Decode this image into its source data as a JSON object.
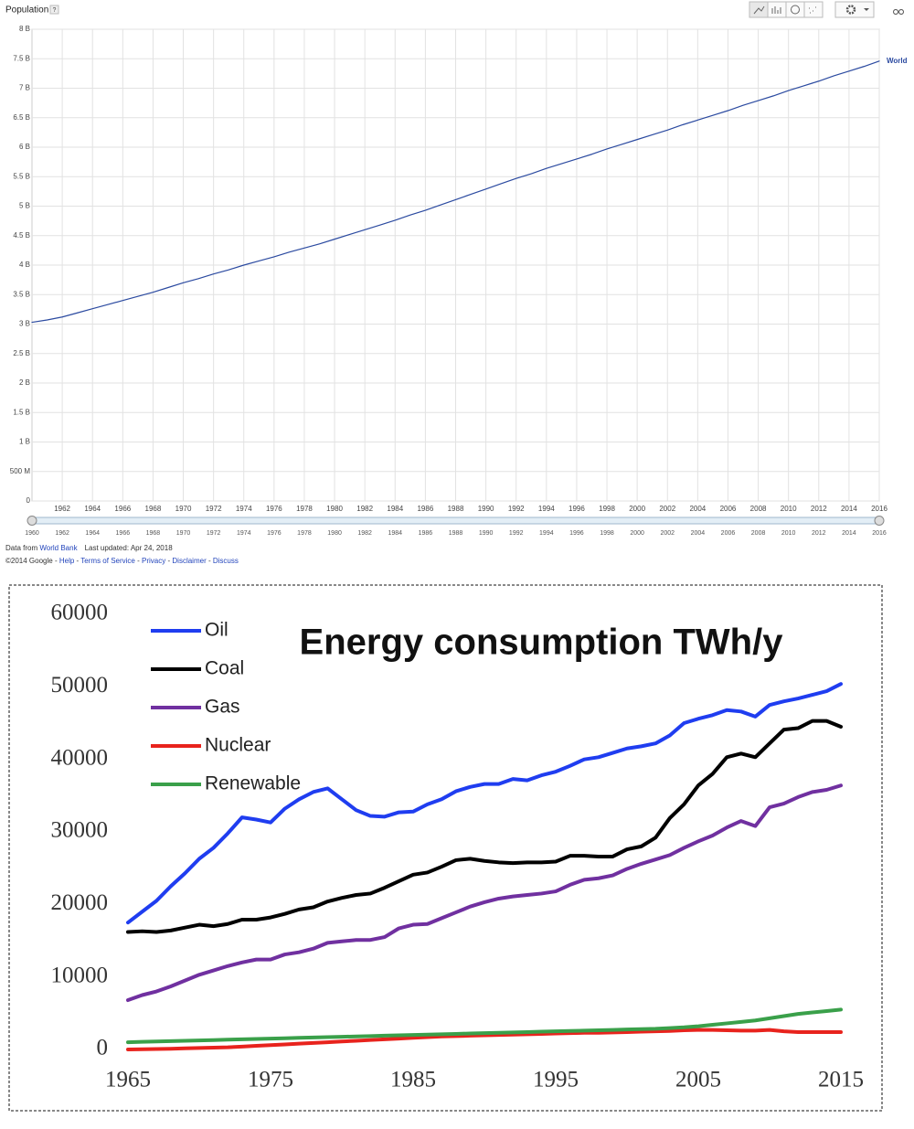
{
  "header": {
    "help": "?"
  },
  "footer": {
    "source_prefix": "Data from",
    "source": "World Bank",
    "updated": "Last updated: Apr 24, 2018",
    "copyright": "©2014 Google",
    "separator": "-",
    "links": [
      "Help",
      "Terms of Service",
      "Privacy",
      "Disclaimer",
      "Discuss"
    ]
  },
  "chart_data": [
    {
      "type": "line",
      "title": "Population",
      "grid": true,
      "legend": "line-end",
      "x": [
        1960,
        1961,
        1962,
        1963,
        1964,
        1965,
        1966,
        1967,
        1968,
        1969,
        1970,
        1971,
        1972,
        1973,
        1974,
        1975,
        1976,
        1977,
        1978,
        1979,
        1980,
        1981,
        1982,
        1983,
        1984,
        1985,
        1986,
        1987,
        1988,
        1989,
        1990,
        1991,
        1992,
        1993,
        1994,
        1995,
        1996,
        1997,
        1998,
        1999,
        2000,
        2001,
        2002,
        2003,
        2004,
        2005,
        2006,
        2007,
        2008,
        2009,
        2010,
        2011,
        2012,
        2013,
        2014,
        2015,
        2016
      ],
      "series": [
        {
          "name": "World",
          "color": "#2b4aa0",
          "values": [
            3030000000.0,
            3070000000.0,
            3120000000.0,
            3190000000.0,
            3260000000.0,
            3330000000.0,
            3400000000.0,
            3470000000.0,
            3540000000.0,
            3620000000.0,
            3700000000.0,
            3770000000.0,
            3850000000.0,
            3920000000.0,
            4000000000.0,
            4070000000.0,
            4140000000.0,
            4220000000.0,
            4290000000.0,
            4360000000.0,
            4440000000.0,
            4520000000.0,
            4600000000.0,
            4680000000.0,
            4760000000.0,
            4850000000.0,
            4930000000.0,
            5020000000.0,
            5110000000.0,
            5200000000.0,
            5290000000.0,
            5380000000.0,
            5470000000.0,
            5550000000.0,
            5640000000.0,
            5720000000.0,
            5800000000.0,
            5880000000.0,
            5970000000.0,
            6050000000.0,
            6130000000.0,
            6210000000.0,
            6290000000.0,
            6380000000.0,
            6460000000.0,
            6540000000.0,
            6620000000.0,
            6710000000.0,
            6790000000.0,
            6870000000.0,
            6960000000.0,
            7040000000.0,
            7120000000.0,
            7210000000.0,
            7290000000.0,
            7370000000.0,
            7460000000.0
          ]
        }
      ],
      "xlim": [
        1960,
        2016
      ],
      "xticks": [
        1962,
        1964,
        1966,
        1968,
        1970,
        1972,
        1974,
        1976,
        1978,
        1980,
        1982,
        1984,
        1986,
        1988,
        1990,
        1992,
        1994,
        1996,
        1998,
        2000,
        2002,
        2004,
        2006,
        2008,
        2010,
        2012,
        2014,
        2016
      ],
      "ylim": [
        0,
        8000000000
      ],
      "yticks": [
        0,
        {
          "value": 500000000,
          "label": "500 M"
        },
        {
          "value": 1000000000,
          "label": "1 B"
        },
        {
          "value": 1500000000,
          "label": "1.5 B"
        },
        {
          "value": 2000000000,
          "label": "2 B"
        },
        {
          "value": 2500000000,
          "label": "2.5 B"
        },
        {
          "value": 3000000000,
          "label": "3 B"
        },
        {
          "value": 3500000000,
          "label": "3.5 B"
        },
        {
          "value": 4000000000,
          "label": "4 B"
        },
        {
          "value": 4500000000,
          "label": "4.5 B"
        },
        {
          "value": 5000000000,
          "label": "5 B"
        },
        {
          "value": 5500000000,
          "label": "5.5 B"
        },
        {
          "value": 6000000000,
          "label": "6 B"
        },
        {
          "value": 6500000000,
          "label": "6.5 B"
        },
        {
          "value": 7000000000,
          "label": "7 B"
        },
        {
          "value": 7500000000,
          "label": "7.5 B"
        },
        {
          "value": 8000000000,
          "label": "8 B"
        }
      ]
    },
    {
      "type": "line",
      "title": "Energy consumption TWh/y",
      "grid": false,
      "legend": "upper left",
      "x": [
        1965,
        1966,
        1967,
        1968,
        1969,
        1970,
        1971,
        1972,
        1973,
        1974,
        1975,
        1976,
        1977,
        1978,
        1979,
        1980,
        1981,
        1982,
        1983,
        1984,
        1985,
        1986,
        1987,
        1988,
        1989,
        1990,
        1991,
        1992,
        1993,
        1994,
        1995,
        1996,
        1997,
        1998,
        1999,
        2000,
        2001,
        2002,
        2003,
        2004,
        2005,
        2006,
        2007,
        2008,
        2009,
        2010,
        2011,
        2012,
        2013,
        2014,
        2015
      ],
      "series": [
        {
          "name": "Oil",
          "color": "#1f3df0",
          "values": [
            17500,
            19000,
            20500,
            22500,
            24300,
            26300,
            27800,
            29800,
            32000,
            31700,
            31300,
            33200,
            34500,
            35500,
            36000,
            34500,
            33000,
            32200,
            32100,
            32700,
            32800,
            33800,
            34500,
            35600,
            36200,
            36600,
            36600,
            37300,
            37100,
            37800,
            38300,
            39100,
            40000,
            40300,
            40900,
            41500,
            41800,
            42200,
            43300,
            45000,
            45600,
            46100,
            46800,
            46600,
            45900,
            47500,
            48000,
            48400,
            48900,
            49400,
            50400
          ]
        },
        {
          "name": "Coal",
          "color": "#000000",
          "values": [
            16200,
            16300,
            16200,
            16400,
            16800,
            17200,
            17000,
            17300,
            17900,
            17900,
            18200,
            18700,
            19300,
            19600,
            20400,
            20900,
            21300,
            21500,
            22300,
            23200,
            24100,
            24400,
            25200,
            26100,
            26300,
            26000,
            25800,
            25700,
            25800,
            25800,
            25900,
            26700,
            26700,
            26600,
            26600,
            27600,
            28000,
            29200,
            31900,
            33800,
            36400,
            38000,
            40300,
            40800,
            40300,
            42200,
            44100,
            44300,
            45300,
            45300,
            44500
          ]
        },
        {
          "name": "Gas",
          "color": "#7030a0",
          "values": [
            6800,
            7500,
            8000,
            8700,
            9500,
            10300,
            10900,
            11500,
            12000,
            12400,
            12400,
            13100,
            13400,
            13900,
            14700,
            14900,
            15100,
            15100,
            15500,
            16700,
            17200,
            17300,
            18100,
            18900,
            19700,
            20300,
            20800,
            21100,
            21300,
            21500,
            21800,
            22700,
            23400,
            23600,
            24000,
            24900,
            25600,
            26200,
            26800,
            27800,
            28700,
            29500,
            30600,
            31500,
            30800,
            33400,
            33900,
            34800,
            35500,
            35800,
            36400
          ]
        },
        {
          "name": "Nuclear",
          "color": "#e8231d",
          "values": [
            0,
            30,
            60,
            100,
            150,
            200,
            250,
            300,
            400,
            500,
            600,
            700,
            800,
            900,
            1000,
            1100,
            1200,
            1300,
            1400,
            1500,
            1600,
            1700,
            1800,
            1850,
            1900,
            1950,
            2000,
            2050,
            2100,
            2150,
            2200,
            2250,
            2300,
            2300,
            2350,
            2400,
            2450,
            2500,
            2550,
            2650,
            2700,
            2700,
            2650,
            2600,
            2600,
            2700,
            2500,
            2400,
            2400,
            2400,
            2400
          ]
        },
        {
          "name": "Renewable",
          "color": "#3aa04a",
          "values": [
            1000,
            1050,
            1100,
            1150,
            1200,
            1250,
            1300,
            1350,
            1400,
            1450,
            1500,
            1550,
            1600,
            1650,
            1700,
            1750,
            1800,
            1850,
            1900,
            1950,
            2000,
            2050,
            2100,
            2150,
            2200,
            2250,
            2300,
            2350,
            2400,
            2450,
            2500,
            2550,
            2600,
            2650,
            2700,
            2750,
            2800,
            2850,
            2950,
            3050,
            3200,
            3400,
            3600,
            3800,
            4000,
            4300,
            4600,
            4900,
            5100,
            5300,
            5500
          ]
        }
      ],
      "xlim": [
        1965,
        2015
      ],
      "xticks": [
        1965,
        1975,
        1985,
        1995,
        2005,
        2015
      ],
      "ylim": [
        0,
        60000
      ],
      "yticks": [
        0,
        10000,
        20000,
        30000,
        40000,
        50000,
        60000
      ]
    }
  ]
}
